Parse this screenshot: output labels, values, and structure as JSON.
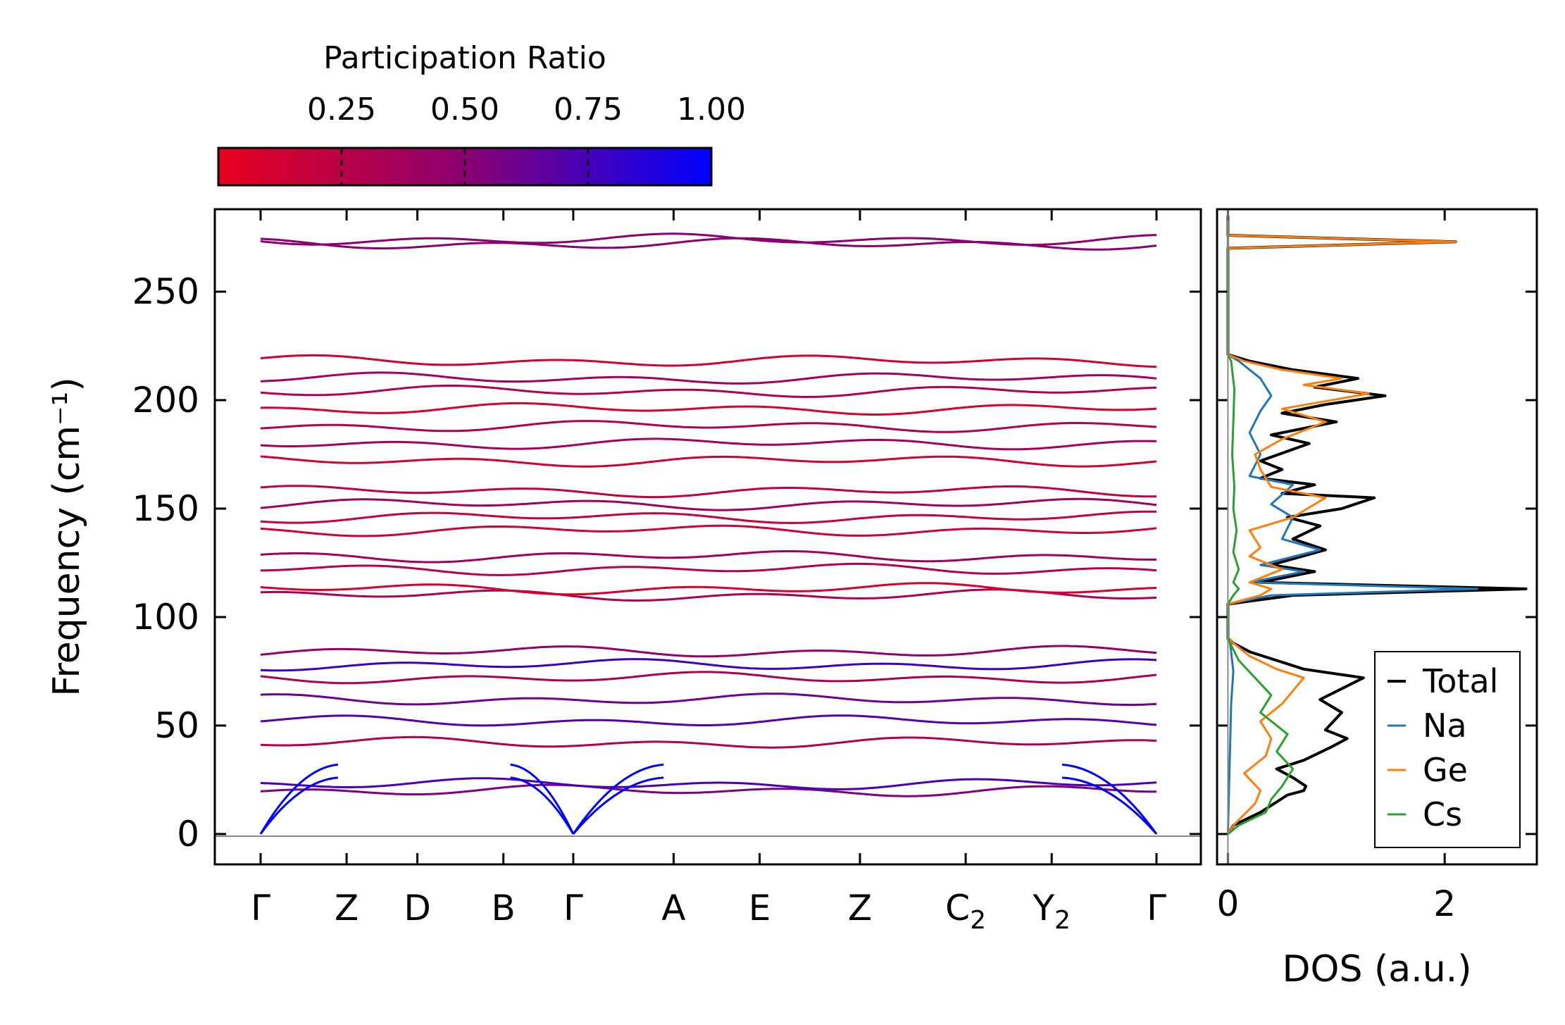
{
  "chart_data": [
    {
      "type": "line",
      "title": "",
      "xlabel": "",
      "ylabel": "Frequency (cm⁻¹)",
      "ylim": [
        -14,
        288
      ],
      "yticks": [
        0,
        50,
        100,
        150,
        200,
        250
      ],
      "xticks": [
        {
          "base": "Γ",
          "sub": ""
        },
        {
          "base": "Z",
          "sub": ""
        },
        {
          "base": "D",
          "sub": ""
        },
        {
          "base": "B",
          "sub": ""
        },
        {
          "base": "Γ",
          "sub": ""
        },
        {
          "base": "A",
          "sub": ""
        },
        {
          "base": "E",
          "sub": ""
        },
        {
          "base": "Z",
          "sub": ""
        },
        {
          "base": "C",
          "sub": "2"
        },
        {
          "base": "Y",
          "sub": "2"
        },
        {
          "base": "Γ",
          "sub": ""
        }
      ],
      "path_coordinate_x": [
        0,
        0.096,
        0.175,
        0.271,
        0.349,
        0.461,
        0.557,
        0.669,
        0.787,
        0.883,
        1.0
      ],
      "flat_band_frequencies": [
        20,
        23,
        42,
        52,
        62,
        72,
        78,
        84,
        110,
        113,
        122,
        128,
        140,
        146,
        152,
        158,
        172,
        180,
        188,
        196,
        204,
        210,
        218,
        272,
        274
      ],
      "acoustic_branch_top_frequencies": [
        26,
        32
      ],
      "colorbar": {
        "label": "Participation Ratio",
        "range": [
          0.0,
          1.0
        ],
        "ticks": [
          "0.25",
          "0.50",
          "0.75",
          "1.00"
        ],
        "tick_values": [
          0.25,
          0.5,
          0.75,
          1.0
        ],
        "color_low": "#e8001e",
        "color_mid": "#8b0070",
        "color_high": "#0000ff"
      }
    },
    {
      "type": "line",
      "title": "",
      "xlabel": "DOS (a.u.)",
      "ylabel": "",
      "xlim": [
        -0.1,
        2.85
      ],
      "ylim": [
        -14,
        288
      ],
      "xticks": [
        "0",
        "2"
      ],
      "xtick_values": [
        0,
        2
      ],
      "legend": {
        "position": "lower-right",
        "entries": [
          "Total",
          "Na",
          "Ge",
          "Cs"
        ]
      },
      "series": [
        {
          "name": "Total",
          "color": "#000000",
          "points": [
            [
              0,
              0
            ],
            [
              0.05,
              4
            ],
            [
              0.3,
              10
            ],
            [
              0.55,
              18
            ],
            [
              0.7,
              20
            ],
            [
              0.72,
              22
            ],
            [
              0.6,
              26
            ],
            [
              0.45,
              30
            ],
            [
              0.7,
              34
            ],
            [
              0.95,
              40
            ],
            [
              1.1,
              44
            ],
            [
              0.9,
              48
            ],
            [
              1.05,
              56
            ],
            [
              0.85,
              62
            ],
            [
              1.25,
              72
            ],
            [
              0.7,
              76
            ],
            [
              0.45,
              80
            ],
            [
              0.2,
              84
            ],
            [
              0.05,
              88
            ],
            [
              0,
              90
            ],
            [
              0,
              106
            ],
            [
              0.6,
              110
            ],
            [
              2.75,
              113
            ],
            [
              0.3,
              116
            ],
            [
              0.8,
              121
            ],
            [
              0.4,
              124
            ],
            [
              0.9,
              131
            ],
            [
              0.6,
              136
            ],
            [
              0.85,
              142
            ],
            [
              0.55,
              146
            ],
            [
              1.05,
              150
            ],
            [
              1.35,
              155
            ],
            [
              0.5,
              157
            ],
            [
              0.8,
              161
            ],
            [
              0.3,
              164
            ],
            [
              0.5,
              168
            ],
            [
              0.3,
              172
            ],
            [
              0.75,
              180
            ],
            [
              0.4,
              184
            ],
            [
              1.0,
              190
            ],
            [
              0.5,
              194
            ],
            [
              0.9,
              198
            ],
            [
              1.45,
              202
            ],
            [
              0.8,
              206
            ],
            [
              1.2,
              210
            ],
            [
              0.6,
              214
            ],
            [
              0.2,
              218
            ],
            [
              0,
              221
            ],
            [
              0,
              270
            ],
            [
              2.1,
              273
            ],
            [
              0,
              276
            ],
            [
              0,
              285
            ]
          ]
        },
        {
          "name": "Na",
          "color": "#1f77b4",
          "points": [
            [
              0,
              0
            ],
            [
              0.01,
              20
            ],
            [
              0.02,
              40
            ],
            [
              0.03,
              60
            ],
            [
              0.05,
              75
            ],
            [
              0.02,
              88
            ],
            [
              0,
              90
            ],
            [
              0,
              106
            ],
            [
              0.4,
              110
            ],
            [
              2.3,
              113
            ],
            [
              0.2,
              116
            ],
            [
              0.7,
              121
            ],
            [
              0.3,
              124
            ],
            [
              0.85,
              131
            ],
            [
              0.5,
              136
            ],
            [
              0.6,
              146
            ],
            [
              0.4,
              152
            ],
            [
              0.6,
              161
            ],
            [
              0.2,
              165
            ],
            [
              0.3,
              175
            ],
            [
              0.2,
              185
            ],
            [
              0.3,
              195
            ],
            [
              0.4,
              202
            ],
            [
              0.3,
              210
            ],
            [
              0.1,
              218
            ],
            [
              0,
              221
            ],
            [
              0,
              285
            ]
          ]
        },
        {
          "name": "Ge",
          "color": "#ff7f0e",
          "points": [
            [
              0,
              0
            ],
            [
              0.05,
              4
            ],
            [
              0.25,
              14
            ],
            [
              0.3,
              20
            ],
            [
              0.15,
              28
            ],
            [
              0.35,
              36
            ],
            [
              0.4,
              44
            ],
            [
              0.3,
              52
            ],
            [
              0.5,
              60
            ],
            [
              0.7,
              72
            ],
            [
              0.45,
              76
            ],
            [
              0.2,
              82
            ],
            [
              0.05,
              88
            ],
            [
              0,
              90
            ],
            [
              0,
              106
            ],
            [
              0.3,
              110
            ],
            [
              0.4,
              113
            ],
            [
              0.2,
              116
            ],
            [
              0.5,
              122
            ],
            [
              0.2,
              128
            ],
            [
              0.3,
              132
            ],
            [
              0.2,
              140
            ],
            [
              0.6,
              146
            ],
            [
              0.9,
              155
            ],
            [
              0.4,
              160
            ],
            [
              0.3,
              168
            ],
            [
              0.25,
              175
            ],
            [
              0.5,
              182
            ],
            [
              0.9,
              190
            ],
            [
              0.5,
              196
            ],
            [
              1.3,
              203
            ],
            [
              0.7,
              207
            ],
            [
              1.05,
              210
            ],
            [
              0.5,
              214
            ],
            [
              0.15,
              218
            ],
            [
              0,
              221
            ],
            [
              0,
              270
            ],
            [
              2.1,
              273
            ],
            [
              0,
              276
            ],
            [
              0,
              285
            ]
          ]
        },
        {
          "name": "Cs",
          "color": "#2ca02c",
          "points": [
            [
              0,
              0
            ],
            [
              0.1,
              4
            ],
            [
              0.35,
              10
            ],
            [
              0.4,
              16
            ],
            [
              0.5,
              22
            ],
            [
              0.6,
              30
            ],
            [
              0.45,
              38
            ],
            [
              0.55,
              46
            ],
            [
              0.3,
              56
            ],
            [
              0.4,
              64
            ],
            [
              0.25,
              72
            ],
            [
              0.1,
              80
            ],
            [
              0.02,
              88
            ],
            [
              0,
              90
            ],
            [
              0,
              106
            ],
            [
              0.05,
              110
            ],
            [
              0.1,
              113
            ],
            [
              0.05,
              116
            ],
            [
              0.1,
              122
            ],
            [
              0.05,
              130
            ],
            [
              0.08,
              140
            ],
            [
              0.05,
              150
            ],
            [
              0.06,
              160
            ],
            [
              0.04,
              175
            ],
            [
              0.05,
              190
            ],
            [
              0.06,
              205
            ],
            [
              0.03,
              218
            ],
            [
              0,
              221
            ],
            [
              0,
              285
            ]
          ]
        }
      ]
    }
  ]
}
